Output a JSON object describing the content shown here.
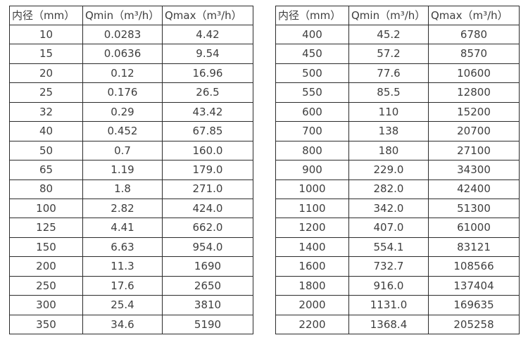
{
  "colors": {
    "background": "#ffffff",
    "border": "#2b2b2b",
    "text": "#3e3e3e"
  },
  "table_left": {
    "headers": [
      "内径（mm）",
      "Qmin（m³/h）",
      "Qmax（m³/h）"
    ],
    "rows": [
      [
        "10",
        "0.0283",
        "4.42"
      ],
      [
        "15",
        "0.0636",
        "9.54"
      ],
      [
        "20",
        "0.12",
        "16.96"
      ],
      [
        "25",
        "0.176",
        "26.5"
      ],
      [
        "32",
        "0.29",
        "43.42"
      ],
      [
        "40",
        "0.452",
        "67.85"
      ],
      [
        "50",
        "0.7",
        "160.0"
      ],
      [
        "65",
        "1.19",
        "179.0"
      ],
      [
        "80",
        "1.8",
        "271.0"
      ],
      [
        "100",
        "2.82",
        "424.0"
      ],
      [
        "125",
        "4.41",
        "662.0"
      ],
      [
        "150",
        "6.63",
        "954.0"
      ],
      [
        "200",
        "11.3",
        "1690"
      ],
      [
        "250",
        "17.6",
        "2650"
      ],
      [
        "300",
        "25.4",
        "3810"
      ],
      [
        "350",
        "34.6",
        "5190"
      ]
    ]
  },
  "table_right": {
    "headers": [
      "内径（mm）",
      "Qmin（m³/h）",
      "Qmax（m³/h）"
    ],
    "rows": [
      [
        "400",
        "45.2",
        "6780"
      ],
      [
        "450",
        "57.2",
        "8570"
      ],
      [
        "500",
        "77.6",
        "10600"
      ],
      [
        "550",
        "85.5",
        "12800"
      ],
      [
        "600",
        "110",
        "15200"
      ],
      [
        "700",
        "138",
        "20700"
      ],
      [
        "800",
        "180",
        "27100"
      ],
      [
        "900",
        "229.0",
        "34300"
      ],
      [
        "1000",
        "282.0",
        "42400"
      ],
      [
        "1100",
        "342.0",
        "51300"
      ],
      [
        "1200",
        "407.0",
        "61000"
      ],
      [
        "1400",
        "554.1",
        "83121"
      ],
      [
        "1600",
        "732.7",
        "108566"
      ],
      [
        "1800",
        "916.0",
        "137404"
      ],
      [
        "2000",
        "1131.0",
        "169635"
      ],
      [
        "2200",
        "1368.4",
        "205258"
      ]
    ]
  }
}
